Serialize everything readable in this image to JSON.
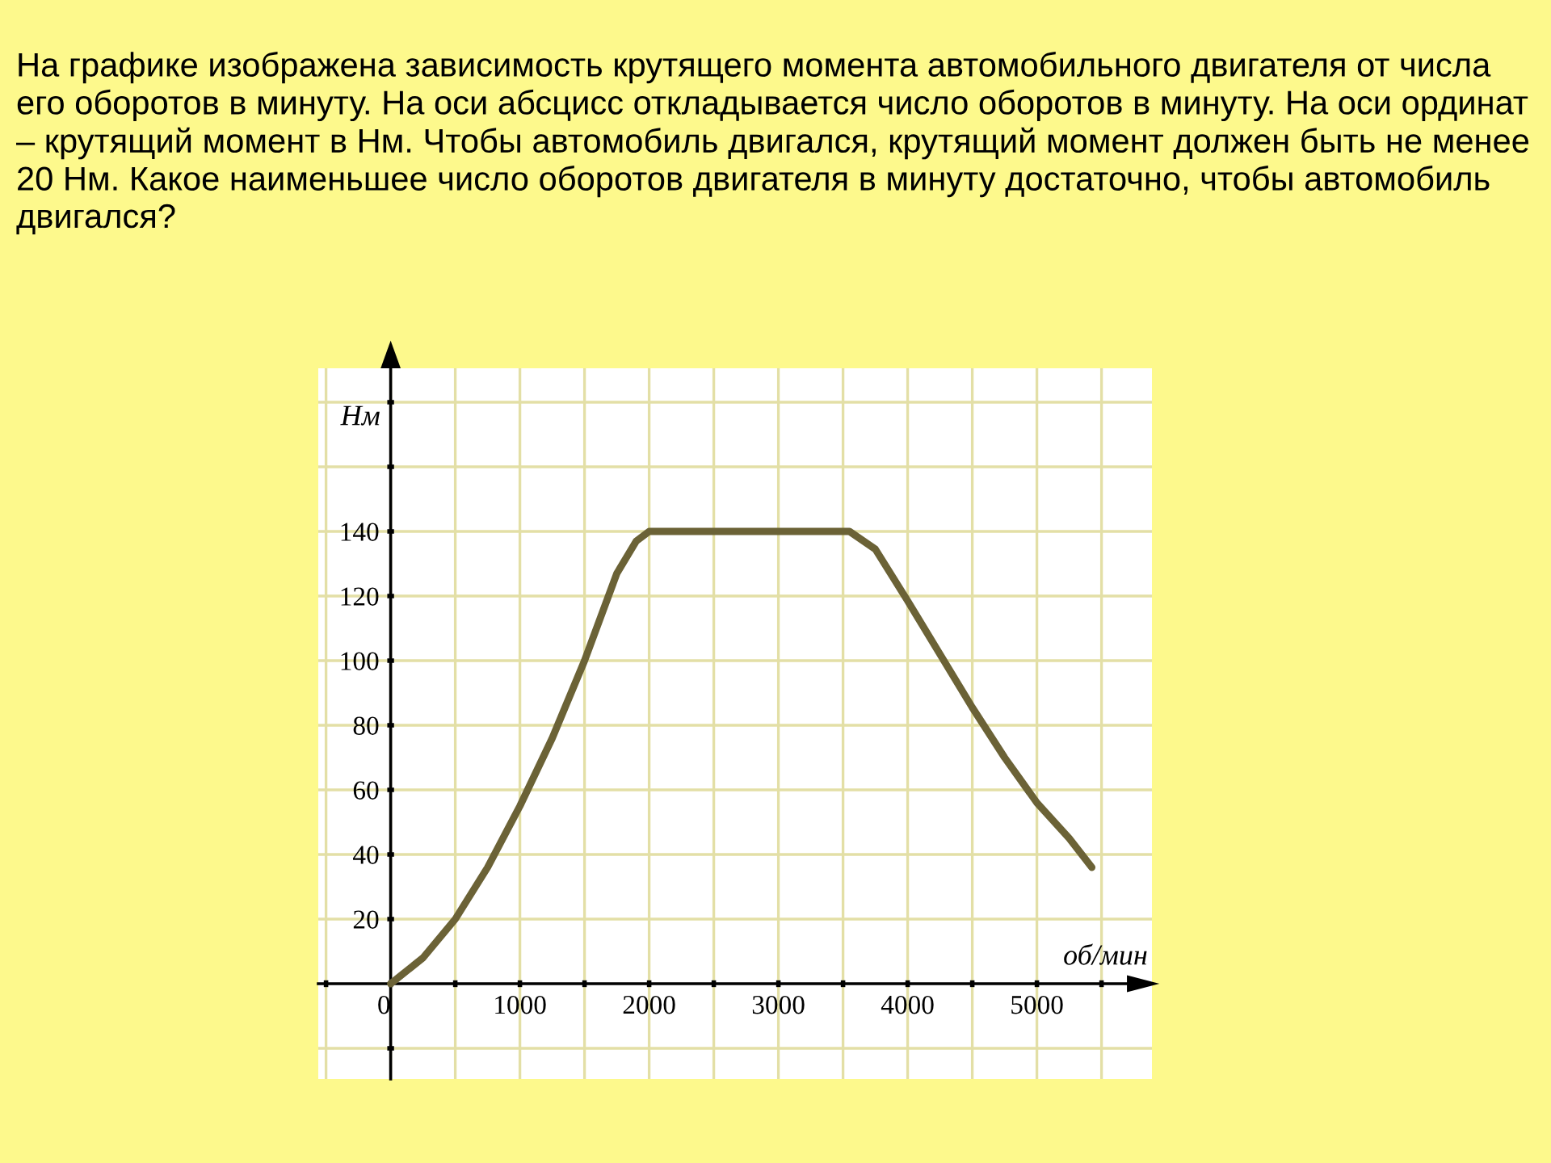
{
  "chart_data": {
    "type": "line",
    "title": "На графике изображена зависимость крутящего момента автомобильного двигателя от числа его оборотов в минуту. На оси абсцисс откладывается число оборотов в минуту. На оси ординат – крутящий момент в Нм. Чтобы автомобиль двигался, крутящий момент должен быть не менее 20 Нм. Какое наименьшее число оборотов двигателя в минуту достаточно, чтобы автомобиль двигался?",
    "xlabel": "об/мин",
    "ylabel": "Нм",
    "x": [
      0,
      250,
      500,
      750,
      1000,
      1250,
      1500,
      1750,
      1900,
      2000,
      3000,
      3550,
      3750,
      4000,
      4250,
      4500,
      4750,
      5000,
      5250,
      5425
    ],
    "series": [
      {
        "color": "#6b6236",
        "values": [
          0,
          8,
          20,
          36,
          55,
          76,
          100,
          127,
          137,
          140,
          140,
          140,
          134.5,
          118.5,
          102,
          85.5,
          70,
          56,
          45,
          36
        ]
      }
    ],
    "xlim": [
      -560,
      5890
    ],
    "ylim": [
      -29.5,
      190.5
    ],
    "xticks": [
      {
        "value": -500,
        "label": null
      },
      0,
      {
        "value": 500,
        "label": null
      },
      1000,
      {
        "value": 1500,
        "label": null
      },
      2000,
      {
        "value": 2500,
        "label": null
      },
      3000,
      {
        "value": 3500,
        "label": null
      },
      4000,
      {
        "value": 4500,
        "label": null
      },
      5000,
      {
        "value": 5500,
        "label": null
      }
    ],
    "yticks": [
      {
        "value": -20,
        "label": null
      },
      20,
      40,
      60,
      80,
      100,
      120,
      140,
      {
        "value": 160,
        "label": null
      },
      {
        "value": 180,
        "label": null
      }
    ],
    "grid": true,
    "marker": "none",
    "line_style": "solid"
  }
}
